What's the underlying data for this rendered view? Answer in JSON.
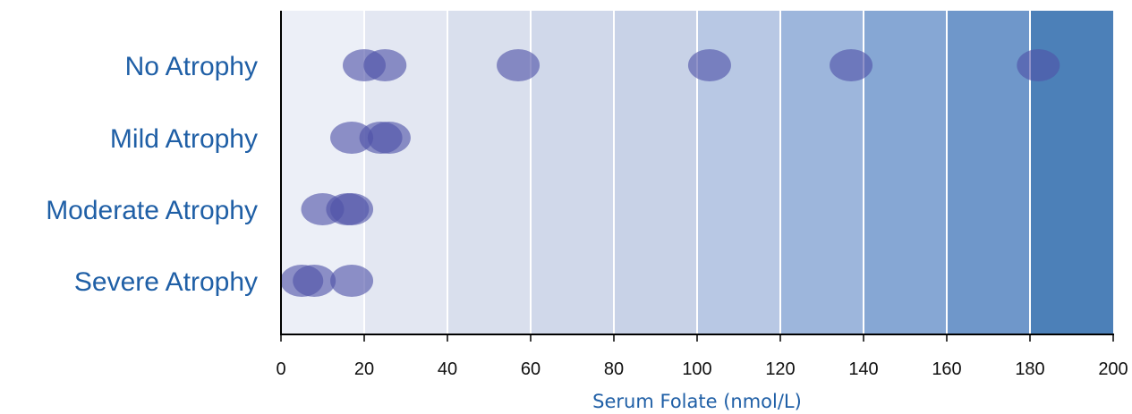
{
  "chart_data": {
    "type": "scatter",
    "title": "",
    "xlabel": "Serum Folate (nmol/L)",
    "ylabel": "",
    "xlim": [
      0,
      200
    ],
    "xticks": [
      "0",
      "20",
      "40",
      "60",
      "80",
      "100",
      "120",
      "140",
      "160",
      "180",
      "200"
    ],
    "categories": [
      "No Atrophy",
      "Mild Atrophy",
      "Moderate Atrophy",
      "Severe Atrophy"
    ],
    "points": [
      {
        "category": "No Atrophy",
        "x": 20
      },
      {
        "category": "No Atrophy",
        "x": 25
      },
      {
        "category": "No Atrophy",
        "x": 57
      },
      {
        "category": "No Atrophy",
        "x": 103
      },
      {
        "category": "No Atrophy",
        "x": 137
      },
      {
        "category": "No Atrophy",
        "x": 182
      },
      {
        "category": "Mild Atrophy",
        "x": 17
      },
      {
        "category": "Mild Atrophy",
        "x": 24
      },
      {
        "category": "Mild Atrophy",
        "x": 26
      },
      {
        "category": "Moderate Atrophy",
        "x": 10
      },
      {
        "category": "Moderate Atrophy",
        "x": 16
      },
      {
        "category": "Moderate Atrophy",
        "x": 17
      },
      {
        "category": "Severe Atrophy",
        "x": 5
      },
      {
        "category": "Severe Atrophy",
        "x": 8
      },
      {
        "category": "Severe Atrophy",
        "x": 17
      }
    ],
    "background_bands": [
      "#eceff7",
      "#e3e7f2",
      "#d9dfed",
      "#d0d8ea",
      "#c8d2e7",
      "#b8c8e4",
      "#9db6dc",
      "#86a7d4",
      "#6f97ca",
      "#4c80b8"
    ],
    "point_color": "#4f52a8",
    "grid": true
  }
}
